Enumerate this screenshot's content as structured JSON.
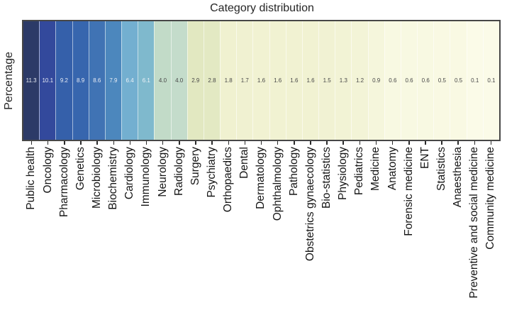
{
  "chart_data": {
    "type": "heatmap",
    "title": "Category distribution",
    "xlabel": "",
    "ylabel": "Percentage",
    "rows": [
      "Percentage"
    ],
    "categories": [
      "Public health",
      "Oncology",
      "Pharmacology",
      "Genetics",
      "Microbiology",
      "Biochemistry",
      "Cardiology",
      "Immunology",
      "Neurology",
      "Radiology",
      "Surgery",
      "Psychiatry",
      "Orthopaedics",
      "Dental",
      "Dermatology",
      "Ophthalmology",
      "Pathology",
      "Obstetrics gynaecology",
      "Bio-statistics",
      "Physiology",
      "Pediatrics",
      "Medicine",
      "Anatomy",
      "Forensic medicine",
      "ENT",
      "Statistics",
      "Anaesthesia",
      "Preventive and social medicine",
      "Community medicine"
    ],
    "values": [
      11.3,
      10.1,
      9.2,
      8.9,
      8.6,
      7.9,
      6.4,
      6.1,
      4.0,
      4.0,
      2.9,
      2.8,
      1.8,
      1.7,
      1.6,
      1.6,
      1.6,
      1.6,
      1.5,
      1.3,
      1.2,
      0.9,
      0.6,
      0.6,
      0.6,
      0.5,
      0.5,
      0.1,
      0.1
    ],
    "value_labels": [
      "11.3",
      "10.1",
      "9.2",
      "8.9",
      "8.6",
      "7.9",
      "6.4",
      "6.1",
      "4.0",
      "4.0",
      "2.9",
      "2.8",
      "1.8",
      "1.7",
      "1.6",
      "1.6",
      "1.6",
      "1.6",
      "1.5",
      "1.3",
      "1.2",
      "0.9",
      "0.6",
      "0.6",
      "0.6",
      "0.5",
      "0.5",
      "0.1",
      "0.1"
    ],
    "cell_colors": [
      "#2c3a67",
      "#33499c",
      "#3560aa",
      "#3766ae",
      "#4073b4",
      "#4c87bd",
      "#73afd0",
      "#7fb9cd",
      "#c2dbc8",
      "#c4dccb",
      "#e2e8c1",
      "#e3e9c3",
      "#f0f1d0",
      "#f0f1d1",
      "#f1f2d2",
      "#f1f2d2",
      "#f1f2d2",
      "#f1f2d2",
      "#f1f2d3",
      "#f2f3d5",
      "#f3f4d7",
      "#f5f6dc",
      "#f8f9e2",
      "#f8f9e2",
      "#f8f9e2",
      "#f9f9e3",
      "#f9f9e3",
      "#fbfbe8",
      "#fbfbe8"
    ],
    "value_label_colors": [
      "#e9edf6",
      "#e9edf6",
      "#e9edf6",
      "#e9edf6",
      "#e9edf6",
      "#e9edf6",
      "#eef3f8",
      "#eef3f8",
      "#474747",
      "#474747",
      "#474747",
      "#474747",
      "#474747",
      "#474747",
      "#474747",
      "#474747",
      "#474747",
      "#474747",
      "#474747",
      "#474747",
      "#474747",
      "#474747",
      "#474747",
      "#474747",
      "#474747",
      "#474747",
      "#474747",
      "#474747",
      "#474747"
    ],
    "layout": {
      "legend": "none",
      "grid": "off",
      "orientation": "single-row-heatmap",
      "palette": "YlGnBu reversed (dark blue = high, pale yellow = low)"
    }
  },
  "style": {
    "frame_color": "#474747",
    "tick_color": "#2b2b2b",
    "separator_color": "rgba(255,255,255,0.55)",
    "background": "#ffffff"
  }
}
